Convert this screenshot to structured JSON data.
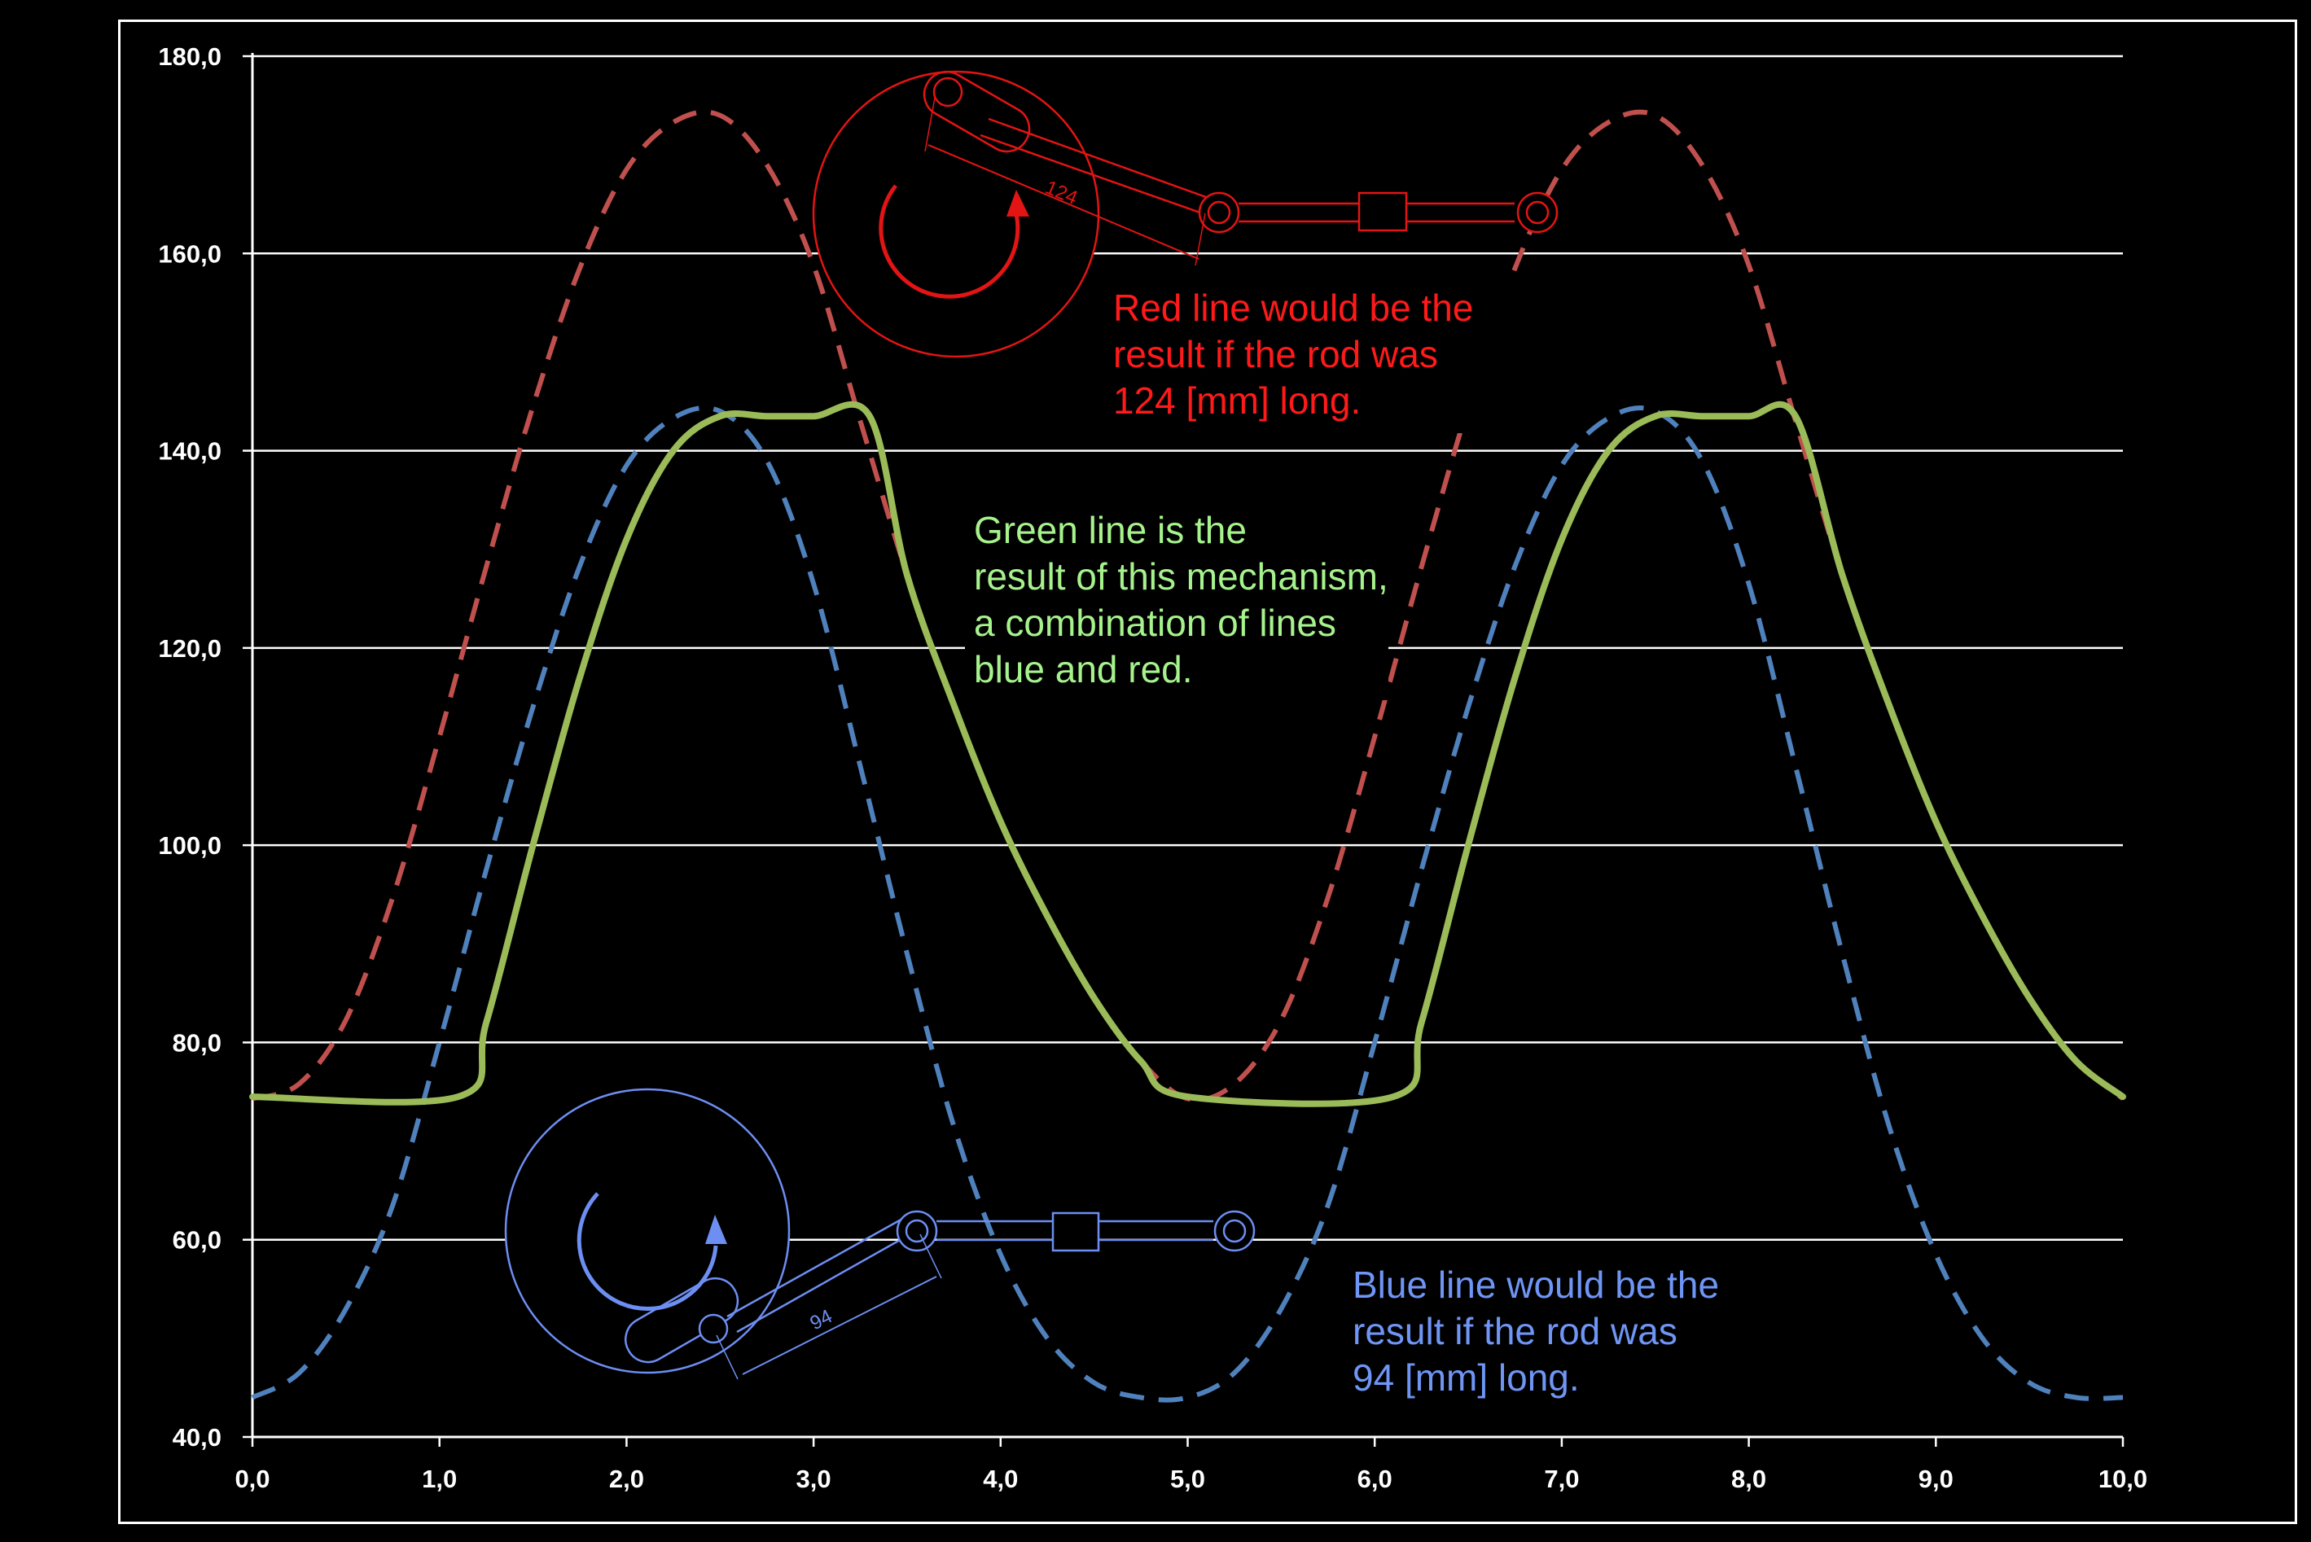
{
  "chart_data": {
    "type": "line",
    "title": "",
    "xlabel": "",
    "ylabel": "",
    "xlim": [
      0,
      10
    ],
    "ylim": [
      40,
      180
    ],
    "x_ticks": [
      "0,0",
      "1,0",
      "2,0",
      "3,0",
      "4,0",
      "5,0",
      "6,0",
      "7,0",
      "8,0",
      "9,0",
      "10,0"
    ],
    "y_ticks": [
      "40,0",
      "60,0",
      "80,0",
      "100,0",
      "120,0",
      "140,0",
      "160,0",
      "180,0"
    ],
    "grid": "horizontal",
    "series": [
      {
        "color": "#c0504d",
        "style": "dashed",
        "x": [
          0.0,
          0.25,
          0.5,
          0.75,
          1.0,
          1.25,
          1.5,
          1.75,
          2.0,
          2.25,
          2.5,
          2.75,
          3.0,
          3.25,
          3.5,
          3.75,
          4.0,
          4.25,
          4.5,
          4.75,
          5.0,
          5.25,
          5.5,
          5.75,
          6.0,
          6.25,
          6.5,
          6.75,
          7.0,
          7.25,
          7.5,
          7.75,
          8.0,
          8.25,
          8.5,
          8.75,
          9.0,
          9.25,
          9.5,
          9.75,
          10.0
        ],
        "values": [
          74.3,
          75.8,
          82.3,
          94.7,
          111.0,
          128.2,
          144.5,
          158.5,
          168.5,
          173.3,
          174.0,
          169.0,
          158.8,
          143.0,
          127.4,
          114.2,
          102.4,
          92.8,
          84.5,
          78.1,
          74.3,
          75.8,
          82.3,
          94.7,
          111.0,
          128.2,
          144.5,
          158.5,
          168.5,
          173.3,
          174.0,
          169.0,
          158.8,
          143.0,
          127.4,
          114.2,
          102.4,
          92.8,
          84.5,
          78.1,
          74.3
        ]
      },
      {
        "color": "#4f81bd",
        "style": "dashed",
        "x": [
          0.0,
          0.25,
          0.5,
          0.75,
          1.0,
          1.25,
          1.5,
          1.75,
          2.0,
          2.25,
          2.5,
          2.75,
          3.0,
          3.25,
          3.5,
          3.75,
          4.0,
          4.25,
          4.5,
          4.75,
          5.0,
          5.25,
          5.5,
          5.75,
          6.0,
          6.25,
          6.5,
          6.75,
          7.0,
          7.25,
          7.5,
          7.75,
          8.0,
          8.25,
          8.5,
          8.75,
          9.0,
          9.25,
          9.5,
          9.75,
          10.0
        ],
        "values": [
          44.0,
          46.5,
          53.0,
          63.5,
          80.0,
          97.5,
          114.0,
          128.3,
          138.5,
          143.3,
          144.0,
          139.0,
          126.5,
          108.0,
          89.0,
          71.5,
          58.5,
          50.0,
          45.5,
          44.0,
          44.0,
          46.5,
          53.0,
          63.5,
          80.0,
          97.5,
          114.0,
          128.3,
          138.5,
          143.3,
          144.0,
          139.0,
          126.5,
          108.0,
          89.0,
          71.5,
          58.5,
          50.0,
          45.5,
          44.0,
          44.0
        ]
      },
      {
        "color": "#9bbb59",
        "style": "solid",
        "x": [
          0.0,
          1.1,
          1.25,
          1.5,
          1.75,
          2.0,
          2.25,
          2.5,
          2.75,
          3.0,
          3.3,
          3.5,
          3.75,
          4.0,
          4.25,
          4.5,
          4.75,
          5.0,
          6.1,
          6.25,
          6.5,
          6.75,
          7.0,
          7.25,
          7.5,
          7.75,
          8.0,
          8.25,
          8.5,
          8.75,
          9.0,
          9.25,
          9.5,
          9.75,
          10.0
        ],
        "values": [
          74.5,
          74.5,
          82.0,
          100.0,
          117.0,
          131.0,
          140.0,
          143.5,
          143.5,
          143.5,
          143.5,
          127.4,
          114.2,
          102.4,
          92.8,
          84.5,
          78.1,
          74.5,
          74.5,
          82.0,
          100.0,
          117.0,
          131.0,
          140.0,
          143.5,
          143.5,
          143.5,
          143.5,
          127.4,
          114.2,
          102.4,
          92.8,
          84.5,
          78.1,
          74.5
        ]
      }
    ],
    "annotations": {
      "red": [
        "Red line would be the",
        "result if the rod was",
        "124 [mm] long."
      ],
      "green": [
        "Green line is the",
        "result of this mechanism,",
        "a combination of lines",
        "blue and red."
      ],
      "blue": [
        "Blue line would be the",
        "result if the rod was",
        "94 [mm] long."
      ]
    },
    "mechanism_dimensions": {
      "red_rod": "124",
      "blue_rod": "94"
    },
    "colors": {
      "background": "#000000",
      "grid": "#ffffff",
      "red_text": "#ff1a1a",
      "green_text": "#a6f28c",
      "blue_text": "#6f95f5",
      "red_sketch": "#e31414",
      "blue_sketch": "#6d8ef2"
    }
  }
}
